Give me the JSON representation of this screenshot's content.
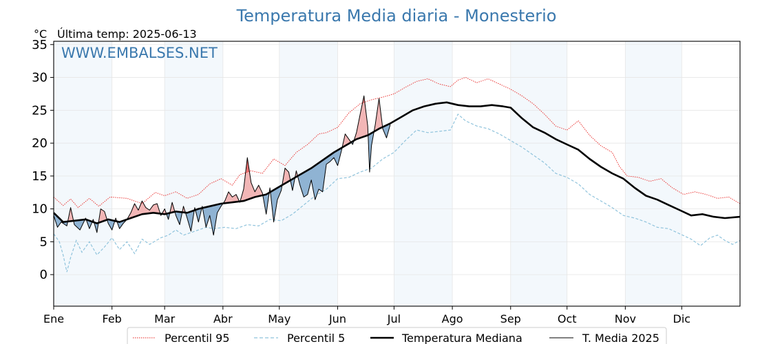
{
  "chart_data": {
    "type": "line",
    "title": "Temperatura Media diaria - Monesterio",
    "ylabel": "°C",
    "subtitle": "Última temp: 2025-06-13",
    "watermark": "WWW.EMBALSES.NET",
    "ylim": [
      -4.8,
      35.5
    ],
    "yticks": [
      0,
      5,
      10,
      15,
      20,
      25,
      30,
      35
    ],
    "xlim": [
      1,
      366
    ],
    "months": [
      {
        "label": "Ene",
        "day": 1
      },
      {
        "label": "Feb",
        "day": 32
      },
      {
        "label": "Mar",
        "day": 60
      },
      {
        "label": "Abr",
        "day": 91
      },
      {
        "label": "May",
        "day": 121
      },
      {
        "label": "Jun",
        "day": 152
      },
      {
        "label": "Jul",
        "day": 182
      },
      {
        "label": "Ago",
        "day": 213
      },
      {
        "label": "Sep",
        "day": 244
      },
      {
        "label": "Oct",
        "day": 274
      },
      {
        "label": "Nov",
        "day": 305
      },
      {
        "label": "Dic",
        "day": 335
      }
    ],
    "grid": true,
    "legend_position": "bottom-center",
    "colors": {
      "p95": "#e8211f",
      "p5": "#8fc3dc",
      "median": "#000000",
      "actual": "#000000",
      "above_fill": "#f2b6b6",
      "above_fill_strong": "#f07070",
      "below_fill": "#8fb3d3",
      "band_fill": "#f3f8fc"
    },
    "series": [
      {
        "name": "Percentil 95",
        "style": "dotted",
        "points": [
          [
            1,
            11.8
          ],
          [
            6,
            10.5
          ],
          [
            10,
            11.5
          ],
          [
            14,
            10.2
          ],
          [
            20,
            11.6
          ],
          [
            25,
            10.4
          ],
          [
            31,
            11.8
          ],
          [
            40,
            11.6
          ],
          [
            48,
            10.8
          ],
          [
            55,
            12.5
          ],
          [
            60,
            12.0
          ],
          [
            66,
            12.6
          ],
          [
            72,
            11.6
          ],
          [
            78,
            12.2
          ],
          [
            84,
            13.8
          ],
          [
            90,
            14.6
          ],
          [
            96,
            13.6
          ],
          [
            100,
            15.2
          ],
          [
            106,
            15.8
          ],
          [
            112,
            15.4
          ],
          [
            118,
            17.6
          ],
          [
            124,
            16.6
          ],
          [
            130,
            18.6
          ],
          [
            136,
            19.8
          ],
          [
            142,
            21.4
          ],
          [
            146,
            21.6
          ],
          [
            152,
            22.4
          ],
          [
            158,
            24.6
          ],
          [
            164,
            26.0
          ],
          [
            170,
            26.6
          ],
          [
            176,
            27.0
          ],
          [
            182,
            27.5
          ],
          [
            188,
            28.5
          ],
          [
            194,
            29.4
          ],
          [
            200,
            29.8
          ],
          [
            206,
            29.0
          ],
          [
            212,
            28.6
          ],
          [
            216,
            29.6
          ],
          [
            220,
            30.0
          ],
          [
            226,
            29.2
          ],
          [
            232,
            29.8
          ],
          [
            238,
            29.0
          ],
          [
            244,
            28.2
          ],
          [
            250,
            27.2
          ],
          [
            256,
            26.0
          ],
          [
            262,
            24.4
          ],
          [
            268,
            22.6
          ],
          [
            274,
            22.0
          ],
          [
            280,
            23.4
          ],
          [
            286,
            21.2
          ],
          [
            292,
            19.6
          ],
          [
            298,
            18.6
          ],
          [
            302,
            16.4
          ],
          [
            306,
            15.0
          ],
          [
            312,
            14.8
          ],
          [
            318,
            14.2
          ],
          [
            324,
            14.6
          ],
          [
            330,
            13.2
          ],
          [
            336,
            12.2
          ],
          [
            342,
            12.6
          ],
          [
            348,
            12.2
          ],
          [
            354,
            11.6
          ],
          [
            360,
            11.8
          ],
          [
            366,
            10.8
          ]
        ]
      },
      {
        "name": "Percentil 5",
        "style": "dashed",
        "points": [
          [
            1,
            6.2
          ],
          [
            4,
            5.0
          ],
          [
            6,
            3.0
          ],
          [
            8,
            0.4
          ],
          [
            10,
            2.6
          ],
          [
            13,
            5.2
          ],
          [
            16,
            3.4
          ],
          [
            20,
            5.0
          ],
          [
            24,
            3.0
          ],
          [
            28,
            4.2
          ],
          [
            32,
            5.6
          ],
          [
            36,
            3.8
          ],
          [
            40,
            5.0
          ],
          [
            44,
            3.2
          ],
          [
            48,
            5.4
          ],
          [
            52,
            4.6
          ],
          [
            58,
            5.6
          ],
          [
            62,
            6.0
          ],
          [
            66,
            6.8
          ],
          [
            70,
            6.0
          ],
          [
            76,
            6.6
          ],
          [
            82,
            7.2
          ],
          [
            86,
            7.0
          ],
          [
            92,
            7.2
          ],
          [
            98,
            7.0
          ],
          [
            104,
            7.6
          ],
          [
            110,
            7.4
          ],
          [
            116,
            8.4
          ],
          [
            122,
            8.2
          ],
          [
            128,
            9.2
          ],
          [
            134,
            10.6
          ],
          [
            140,
            12.0
          ],
          [
            146,
            13.0
          ],
          [
            152,
            14.6
          ],
          [
            158,
            14.8
          ],
          [
            164,
            15.6
          ],
          [
            170,
            16.2
          ],
          [
            176,
            17.6
          ],
          [
            182,
            18.6
          ],
          [
            188,
            20.4
          ],
          [
            194,
            22.0
          ],
          [
            200,
            21.6
          ],
          [
            206,
            21.8
          ],
          [
            212,
            22.0
          ],
          [
            216,
            24.4
          ],
          [
            220,
            23.4
          ],
          [
            226,
            22.6
          ],
          [
            232,
            22.2
          ],
          [
            238,
            21.4
          ],
          [
            244,
            20.4
          ],
          [
            250,
            19.4
          ],
          [
            256,
            18.2
          ],
          [
            262,
            17.0
          ],
          [
            268,
            15.4
          ],
          [
            274,
            14.8
          ],
          [
            280,
            13.8
          ],
          [
            286,
            12.2
          ],
          [
            292,
            11.2
          ],
          [
            298,
            10.2
          ],
          [
            304,
            9.0
          ],
          [
            310,
            8.6
          ],
          [
            316,
            8.0
          ],
          [
            322,
            7.2
          ],
          [
            328,
            7.0
          ],
          [
            334,
            6.2
          ],
          [
            340,
            5.4
          ],
          [
            345,
            4.4
          ],
          [
            350,
            5.6
          ],
          [
            354,
            6.0
          ],
          [
            358,
            5.2
          ],
          [
            362,
            4.6
          ],
          [
            366,
            5.2
          ]
        ]
      },
      {
        "name": "Temperatura Mediana",
        "style": "solid-thick",
        "points": [
          [
            1,
            9.4
          ],
          [
            6,
            8.0
          ],
          [
            12,
            8.2
          ],
          [
            18,
            8.4
          ],
          [
            24,
            7.8
          ],
          [
            30,
            8.4
          ],
          [
            36,
            8.0
          ],
          [
            42,
            8.6
          ],
          [
            48,
            9.2
          ],
          [
            54,
            9.4
          ],
          [
            60,
            9.2
          ],
          [
            66,
            9.6
          ],
          [
            72,
            9.4
          ],
          [
            78,
            10.0
          ],
          [
            84,
            10.4
          ],
          [
            90,
            10.8
          ],
          [
            96,
            11.0
          ],
          [
            102,
            11.2
          ],
          [
            108,
            11.8
          ],
          [
            114,
            12.2
          ],
          [
            120,
            13.2
          ],
          [
            126,
            14.2
          ],
          [
            132,
            15.2
          ],
          [
            138,
            16.2
          ],
          [
            144,
            17.4
          ],
          [
            150,
            18.6
          ],
          [
            156,
            19.6
          ],
          [
            162,
            20.6
          ],
          [
            168,
            21.2
          ],
          [
            174,
            22.2
          ],
          [
            180,
            23.0
          ],
          [
            186,
            24.0
          ],
          [
            192,
            25.0
          ],
          [
            198,
            25.6
          ],
          [
            204,
            26.0
          ],
          [
            210,
            26.2
          ],
          [
            216,
            25.8
          ],
          [
            222,
            25.6
          ],
          [
            228,
            25.6
          ],
          [
            234,
            25.8
          ],
          [
            240,
            25.6
          ],
          [
            244,
            25.4
          ],
          [
            250,
            23.8
          ],
          [
            256,
            22.4
          ],
          [
            262,
            21.6
          ],
          [
            268,
            20.6
          ],
          [
            274,
            19.8
          ],
          [
            280,
            19.0
          ],
          [
            286,
            17.6
          ],
          [
            292,
            16.4
          ],
          [
            298,
            15.4
          ],
          [
            304,
            14.6
          ],
          [
            310,
            13.2
          ],
          [
            316,
            12.0
          ],
          [
            322,
            11.4
          ],
          [
            328,
            10.6
          ],
          [
            334,
            9.8
          ],
          [
            340,
            9.0
          ],
          [
            346,
            9.2
          ],
          [
            352,
            8.8
          ],
          [
            358,
            8.6
          ],
          [
            366,
            8.8
          ]
        ]
      },
      {
        "name": "T. Media 2025",
        "style": "solid-thin",
        "points": [
          [
            1,
            9.0
          ],
          [
            3,
            7.2
          ],
          [
            5,
            8.0
          ],
          [
            8,
            7.4
          ],
          [
            10,
            10.2
          ],
          [
            12,
            7.6
          ],
          [
            15,
            6.8
          ],
          [
            18,
            8.6
          ],
          [
            20,
            7.0
          ],
          [
            22,
            8.4
          ],
          [
            24,
            6.4
          ],
          [
            26,
            10.0
          ],
          [
            28,
            9.6
          ],
          [
            30,
            7.8
          ],
          [
            32,
            6.8
          ],
          [
            34,
            8.6
          ],
          [
            36,
            7.0
          ],
          [
            38,
            7.8
          ],
          [
            40,
            8.4
          ],
          [
            42,
            9.4
          ],
          [
            44,
            10.8
          ],
          [
            46,
            9.8
          ],
          [
            48,
            11.2
          ],
          [
            50,
            10.2
          ],
          [
            52,
            9.8
          ],
          [
            54,
            10.6
          ],
          [
            56,
            10.8
          ],
          [
            58,
            9.0
          ],
          [
            60,
            10.0
          ],
          [
            62,
            8.4
          ],
          [
            64,
            11.0
          ],
          [
            66,
            9.0
          ],
          [
            68,
            7.6
          ],
          [
            70,
            10.4
          ],
          [
            72,
            8.6
          ],
          [
            74,
            6.6
          ],
          [
            76,
            10.2
          ],
          [
            78,
            8.0
          ],
          [
            80,
            10.4
          ],
          [
            82,
            7.2
          ],
          [
            84,
            9.0
          ],
          [
            86,
            6.0
          ],
          [
            88,
            9.4
          ],
          [
            90,
            10.4
          ],
          [
            92,
            11.2
          ],
          [
            94,
            12.6
          ],
          [
            96,
            11.8
          ],
          [
            98,
            12.2
          ],
          [
            100,
            11.0
          ],
          [
            102,
            13.0
          ],
          [
            104,
            17.8
          ],
          [
            106,
            14.0
          ],
          [
            108,
            12.6
          ],
          [
            110,
            13.6
          ],
          [
            112,
            12.4
          ],
          [
            114,
            9.2
          ],
          [
            116,
            13.2
          ],
          [
            118,
            8.0
          ],
          [
            120,
            11.4
          ],
          [
            122,
            12.8
          ],
          [
            124,
            16.2
          ],
          [
            126,
            15.6
          ],
          [
            128,
            12.8
          ],
          [
            130,
            15.8
          ],
          [
            132,
            13.6
          ],
          [
            134,
            11.8
          ],
          [
            136,
            12.2
          ],
          [
            138,
            14.4
          ],
          [
            140,
            11.4
          ],
          [
            142,
            13.0
          ],
          [
            144,
            12.6
          ],
          [
            146,
            16.8
          ],
          [
            148,
            17.2
          ],
          [
            150,
            17.8
          ],
          [
            152,
            16.6
          ],
          [
            154,
            18.8
          ],
          [
            156,
            21.4
          ],
          [
            158,
            20.6
          ],
          [
            160,
            19.8
          ],
          [
            162,
            21.6
          ],
          [
            164,
            24.4
          ],
          [
            166,
            27.2
          ],
          [
            168,
            22.6
          ],
          [
            169,
            15.6
          ],
          [
            170,
            19.6
          ],
          [
            172,
            22.8
          ],
          [
            174,
            26.8
          ],
          [
            176,
            22.2
          ],
          [
            178,
            20.8
          ],
          [
            180,
            22.8
          ]
        ]
      }
    ]
  }
}
